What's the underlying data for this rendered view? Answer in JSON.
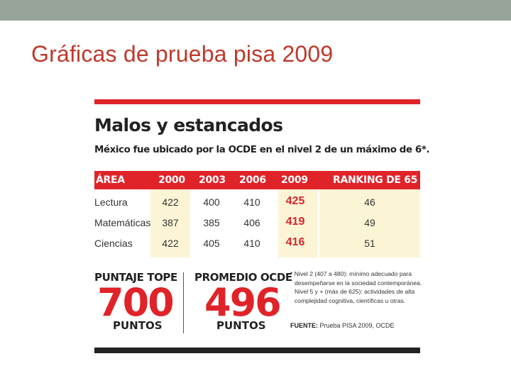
{
  "slide": {
    "title": "Gráficas de prueba pisa 2009"
  },
  "infographic": {
    "headline": "Malos y estancados",
    "subheadline": "México fue ubicado por la OCDE en el nivel 2 de un máximo de 6*.",
    "colors": {
      "accent": "#e02329",
      "shade": "#fbf5d6",
      "dark": "#222222"
    },
    "table": {
      "headers": [
        "ÁREA",
        "2000",
        "2003",
        "2006",
        "2009",
        "RANKING DE 65"
      ],
      "rows": [
        {
          "area": "Lectura",
          "y2000": "422",
          "y2003": "400",
          "y2006": "410",
          "y2009": "425",
          "ranking": "46"
        },
        {
          "area": "Matemáticas",
          "y2000": "387",
          "y2003": "385",
          "y2006": "406",
          "y2009": "419",
          "ranking": "49"
        },
        {
          "area": "Ciencias",
          "y2000": "422",
          "y2003": "405",
          "y2006": "410",
          "y2009": "416",
          "ranking": "51"
        }
      ]
    },
    "top_score": {
      "label": "PUNTAJE TOPE",
      "value": "700",
      "unit": "PUNTOS"
    },
    "average": {
      "label": "PROMEDIO OCDE",
      "value": "496",
      "unit": "PUNTOS"
    },
    "note_lines": [
      "* Nivel 2 (407 a 480): mínimo adecuado para",
      "desempeñarse en la sociedad contemporánea.",
      "Nivel 5 y + (más de 625): actividades de alta",
      "complejidad cognitiva, científicas u otras."
    ],
    "source_label": "FUENTE:",
    "source_text": " Prueba PISA 2009, OCDE"
  }
}
